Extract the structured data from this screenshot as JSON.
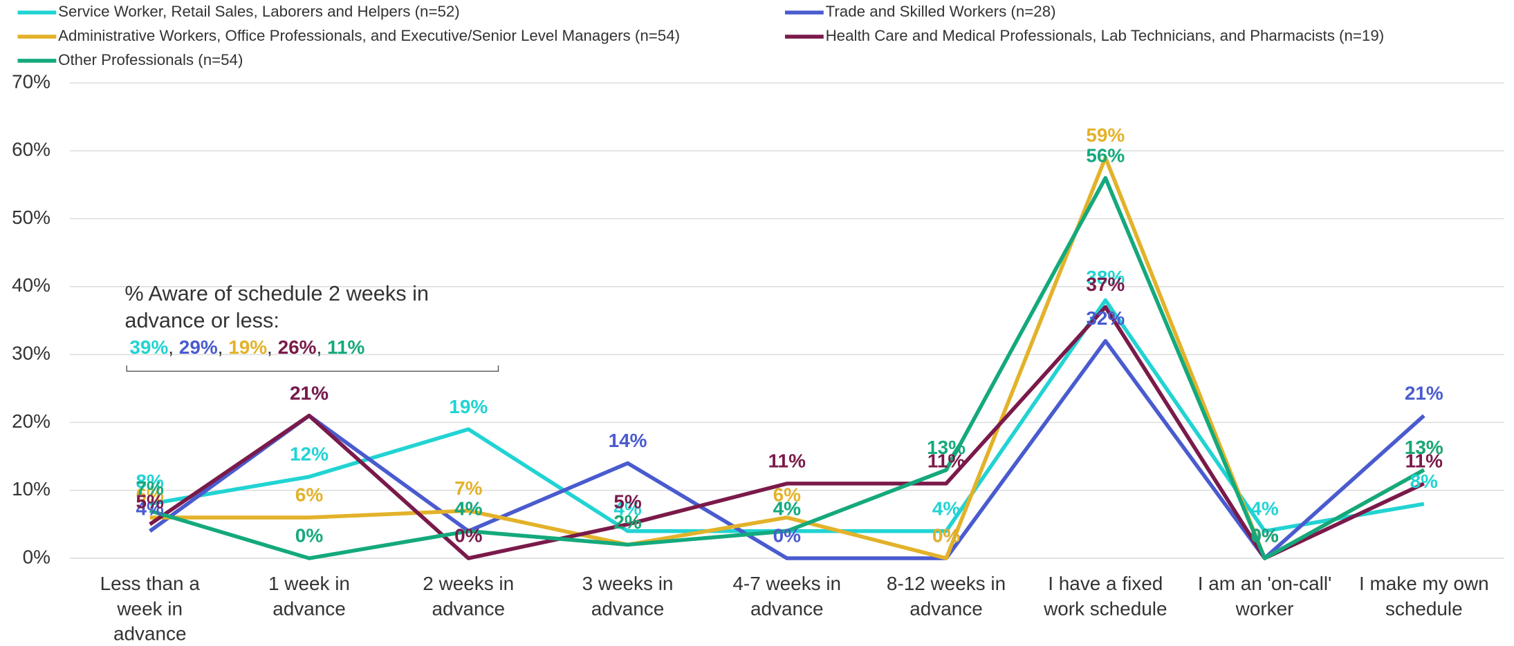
{
  "chart_data": {
    "type": "line",
    "categories": [
      "Less than a\nweek in\nadvance",
      "1 week in\nadvance",
      "2 weeks in\nadvance",
      "3 weeks in\nadvance",
      "4-7 weeks in\nadvance",
      "8-12 weeks in\nadvance",
      "I have a fixed\nwork schedule",
      "I am an 'on-call'\nworker",
      "I make my own\nschedule"
    ],
    "series": [
      {
        "name": "Service Worker, Retail Sales, Laborers and Helpers (n=52)",
        "color": "#22d3d3",
        "values": [
          8,
          12,
          19,
          4,
          4,
          4,
          38,
          4,
          8
        ],
        "value_labels": [
          "8%",
          "12%",
          "19%",
          "4%",
          "4%",
          "4%",
          "38%",
          "4%",
          "8%"
        ]
      },
      {
        "name": "Trade and Skilled Workers (n=28)",
        "color": "#4a5bcf",
        "values": [
          4,
          21,
          4,
          14,
          0,
          0,
          32,
          0,
          21
        ],
        "value_labels": [
          "4%",
          "21%",
          "4%",
          "14%",
          "0%",
          "0%",
          "32%",
          "0%",
          "21%"
        ]
      },
      {
        "name": "Administrative Workers, Office Professionals, and Executive/Senior Level Managers (n=54)",
        "color": "#e3b22a",
        "values": [
          6,
          6,
          7,
          2,
          6,
          0,
          59,
          0,
          13
        ],
        "value_labels": [
          "6%",
          "6%",
          "7%",
          "2%",
          "6%",
          "0%",
          "59%",
          "0%",
          "13%"
        ]
      },
      {
        "name": "Health Care and Medical Professionals, Lab Technicians, and Pharmacists (n=19)",
        "color": "#7a1a4a",
        "values": [
          5,
          21,
          0,
          5,
          11,
          11,
          37,
          0,
          11
        ],
        "value_labels": [
          "5%",
          "21%",
          "0%",
          "5%",
          "11%",
          "11%",
          "37%",
          "0%",
          "11%"
        ]
      },
      {
        "name": "Other Professionals (n=54)",
        "color": "#14a97c",
        "values": [
          7,
          0,
          4,
          2,
          4,
          13,
          56,
          0,
          13
        ],
        "value_labels": [
          "7%",
          "0%",
          "4%",
          "2%",
          "4%",
          "13%",
          "56%",
          "0%",
          "13%"
        ]
      }
    ],
    "ylim": [
      0,
      70
    ],
    "yticks": [
      {
        "value": 0,
        "label": "0%"
      },
      {
        "value": 10,
        "label": "10%"
      },
      {
        "value": 20,
        "label": "20%"
      },
      {
        "value": 30,
        "label": "30%"
      },
      {
        "value": 40,
        "label": "40%"
      },
      {
        "value": 50,
        "label": "50%"
      },
      {
        "value": 60,
        "label": "60%"
      },
      {
        "value": 70,
        "label": "70%"
      }
    ],
    "grid": true,
    "annotation": "% Aware of schedule 2 weeks in\nadvance or less:",
    "annotation_values": [
      "39%",
      "29%",
      "19%",
      "26%",
      "11%"
    ],
    "annotation_separator": ","
  }
}
